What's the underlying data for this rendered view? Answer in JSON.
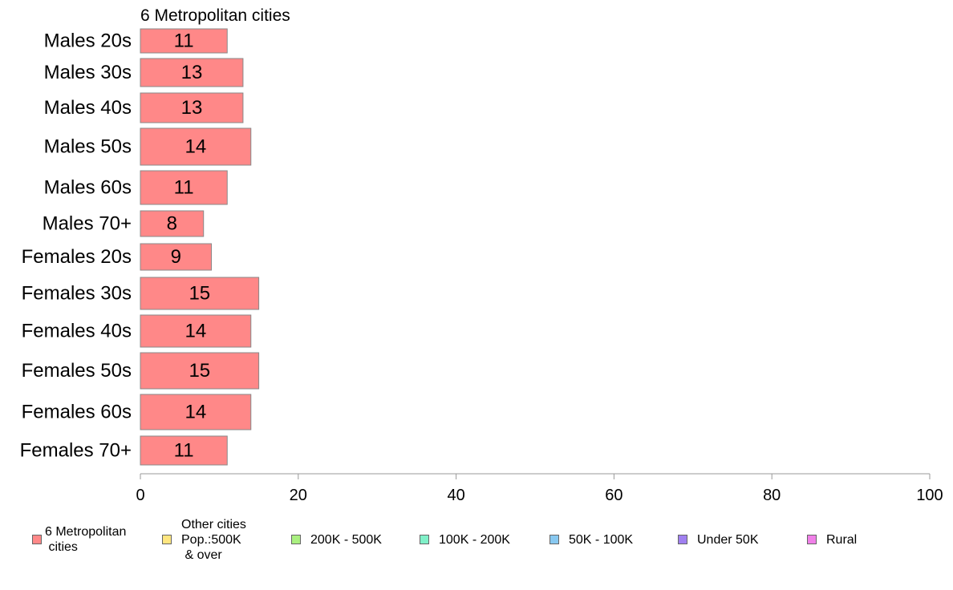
{
  "chart_data": {
    "type": "bar",
    "orientation": "horizontal",
    "title": "6 Metropolitan cities",
    "categories": [
      "Males 20s",
      "Males 30s",
      "Males 40s",
      "Males 50s",
      "Males 60s",
      "Males 70+",
      "Females 20s",
      "Females 30s",
      "Females 40s",
      "Females 50s",
      "Females 60s",
      "Females 70+"
    ],
    "values": [
      11,
      13,
      13,
      14,
      11,
      8,
      9,
      15,
      14,
      15,
      14,
      11
    ],
    "data_labels": [
      "11",
      "13",
      "13",
      "14",
      "11",
      "8",
      "9",
      "15",
      "14",
      "15",
      "14",
      "11"
    ],
    "xlim": [
      0,
      100
    ],
    "xticks": [
      0,
      20,
      40,
      60,
      80,
      100
    ],
    "xtick_labels": [
      "0",
      "20",
      "40",
      "60",
      "80",
      "100"
    ],
    "grid": false,
    "bar_color": "#ff8888",
    "bar_edge_color": "#888888",
    "legend_placement": "bottom",
    "legend": [
      {
        "label": "6 Metropolitan\n cities",
        "color": "#ff8888"
      },
      {
        "label": "Other cities\nPop.:500K\n & over",
        "color": "#ffe680"
      },
      {
        "label": "200K - 500K",
        "color": "#aaf080"
      },
      {
        "label": "100K - 200K",
        "color": "#80f0c8"
      },
      {
        "label": "50K - 100K",
        "color": "#88c8f0"
      },
      {
        "label": "Under 50K",
        "color": "#a080f0"
      },
      {
        "label": "Rural",
        "color": "#f080e8"
      }
    ]
  }
}
